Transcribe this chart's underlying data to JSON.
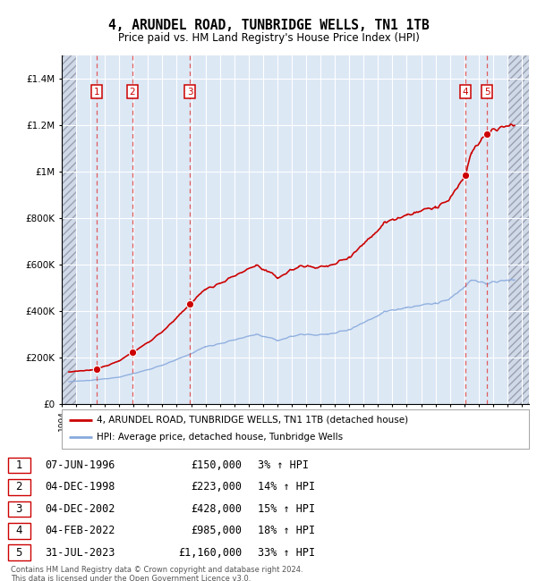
{
  "title": "4, ARUNDEL ROAD, TUNBRIDGE WELLS, TN1 1TB",
  "subtitle": "Price paid vs. HM Land Registry's House Price Index (HPI)",
  "sales": [
    {
      "num": 1,
      "date_str": "07-JUN-1996",
      "year": 1996.44,
      "price": 150000,
      "pct": "3%"
    },
    {
      "num": 2,
      "date_str": "04-DEC-1998",
      "year": 1998.92,
      "price": 223000,
      "pct": "14%"
    },
    {
      "num": 3,
      "date_str": "04-DEC-2002",
      "year": 2002.92,
      "price": 428000,
      "pct": "15%"
    },
    {
      "num": 4,
      "date_str": "04-FEB-2022",
      "year": 2022.09,
      "price": 985000,
      "pct": "18%"
    },
    {
      "num": 5,
      "date_str": "31-JUL-2023",
      "year": 2023.58,
      "price": 1160000,
      "pct": "33%"
    }
  ],
  "price_line_color": "#cc0000",
  "hpi_line_color": "#88aadd",
  "sale_marker_color": "#cc0000",
  "sale_vline_color": "#dd4444",
  "legend_label_price": "4, ARUNDEL ROAD, TUNBRIDGE WELLS, TN1 1TB (detached house)",
  "legend_label_hpi": "HPI: Average price, detached house, Tunbridge Wells",
  "footer": "Contains HM Land Registry data © Crown copyright and database right 2024.\nThis data is licensed under the Open Government Licence v3.0.",
  "ylim_max": 1500000,
  "xlim_start": 1994.0,
  "xlim_end": 2026.5,
  "plot_bg_color": "#dde8f5",
  "hatch_color": "#c0c8d8",
  "grid_color": "#ffffff",
  "table_rows": [
    [
      1,
      "07-JUN-1996",
      "£150,000",
      "3% ↑ HPI"
    ],
    [
      2,
      "04-DEC-1998",
      "£223,000",
      "14% ↑ HPI"
    ],
    [
      3,
      "04-DEC-2002",
      "£428,000",
      "15% ↑ HPI"
    ],
    [
      4,
      "04-FEB-2022",
      "£985,000",
      "18% ↑ HPI"
    ],
    [
      5,
      "31-JUL-2023",
      "£1,160,000",
      "33% ↑ HPI"
    ]
  ]
}
